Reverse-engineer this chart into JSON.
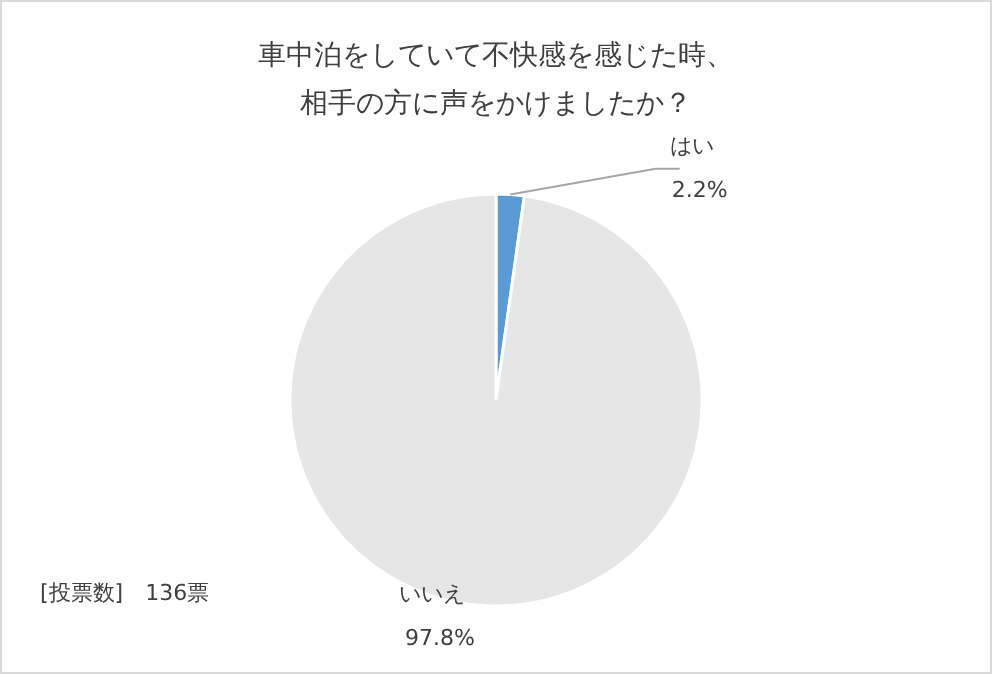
{
  "chart_data": {
    "type": "pie",
    "title": "車中泊をしていて不快感を感じた時、相手の方に声をかけましたか？",
    "categories": [
      "はい",
      "いいえ"
    ],
    "values": [
      2.2,
      97.8
    ],
    "colors": [
      "#5b9bd5",
      "#e7e6e6"
    ],
    "value_labels": [
      "2.2%",
      "97.8%"
    ],
    "annotations": [
      "[投票数]　136票"
    ]
  }
}
